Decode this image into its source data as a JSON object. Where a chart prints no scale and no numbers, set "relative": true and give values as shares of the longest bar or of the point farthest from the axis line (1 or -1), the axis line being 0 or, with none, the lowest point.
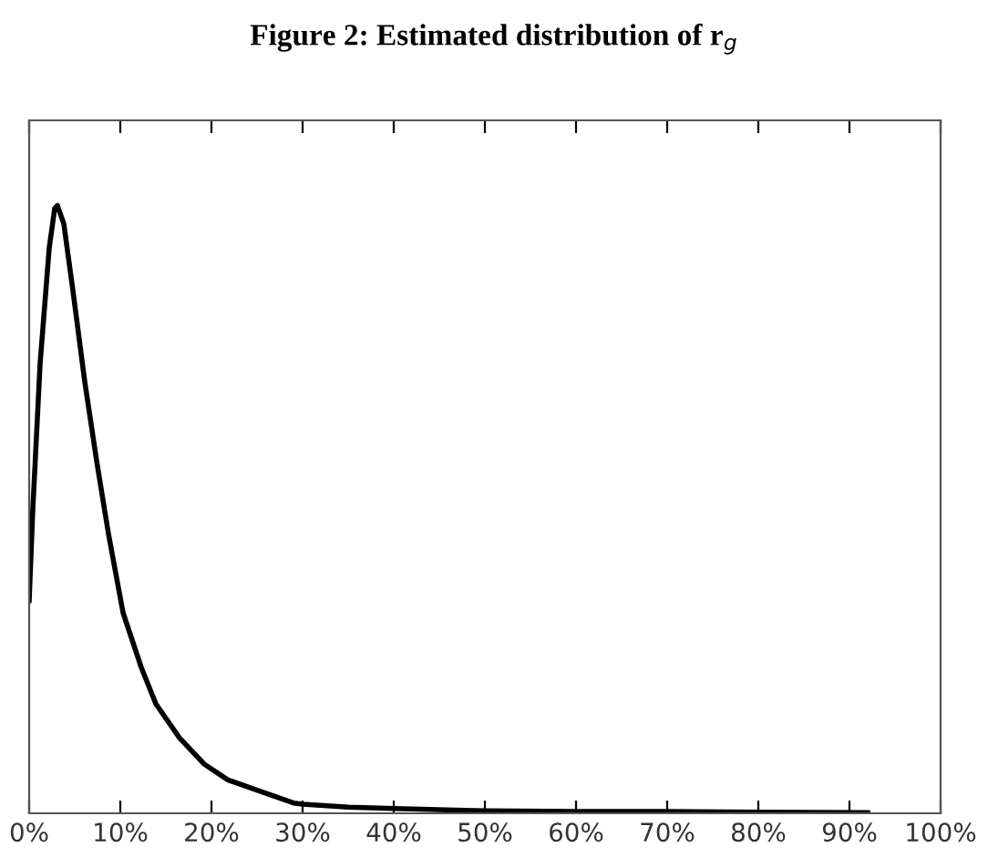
{
  "chart_data": {
    "type": "line",
    "title": "Figure 2: Estimated distribution of r$_{g}$",
    "relative": true,
    "x": [
      0.0,
      0.4,
      1.2,
      2.2,
      2.8,
      3.1,
      3.8,
      4.8,
      6.1,
      7.4,
      8.7,
      10.3,
      12.3,
      13.9,
      16.5,
      19.2,
      21.8,
      25,
      29,
      30,
      35,
      40,
      50,
      60,
      70,
      80,
      92
    ],
    "series": [
      {
        "color": "#000000",
        "values": [
          0.35,
          0.5,
          0.74,
          0.93,
          0.995,
          1.0,
          0.97,
          0.86,
          0.71,
          0.58,
          0.46,
          0.33,
          0.24,
          0.18,
          0.124,
          0.081,
          0.055,
          0.038,
          0.017,
          0.015,
          0.01,
          0.008,
          0.004,
          0.003,
          0.003,
          0.002,
          0.001
        ]
      }
    ],
    "xlim": [
      0,
      100
    ],
    "xticks": [
      {
        "value": 0,
        "label": "0%"
      },
      {
        "value": 10,
        "label": "10%"
      },
      {
        "value": 20,
        "label": "20%"
      },
      {
        "value": 30,
        "label": "30%"
      },
      {
        "value": 40,
        "label": "40%"
      },
      {
        "value": 50,
        "label": "50%"
      },
      {
        "value": 60,
        "label": "60%"
      },
      {
        "value": 70,
        "label": "70%"
      },
      {
        "value": 80,
        "label": "80%"
      },
      {
        "value": 90,
        "label": "90%"
      },
      {
        "value": 100,
        "label": "100%"
      }
    ],
    "tick_labels": "x",
    "grid": false,
    "line_style": "solid"
  }
}
